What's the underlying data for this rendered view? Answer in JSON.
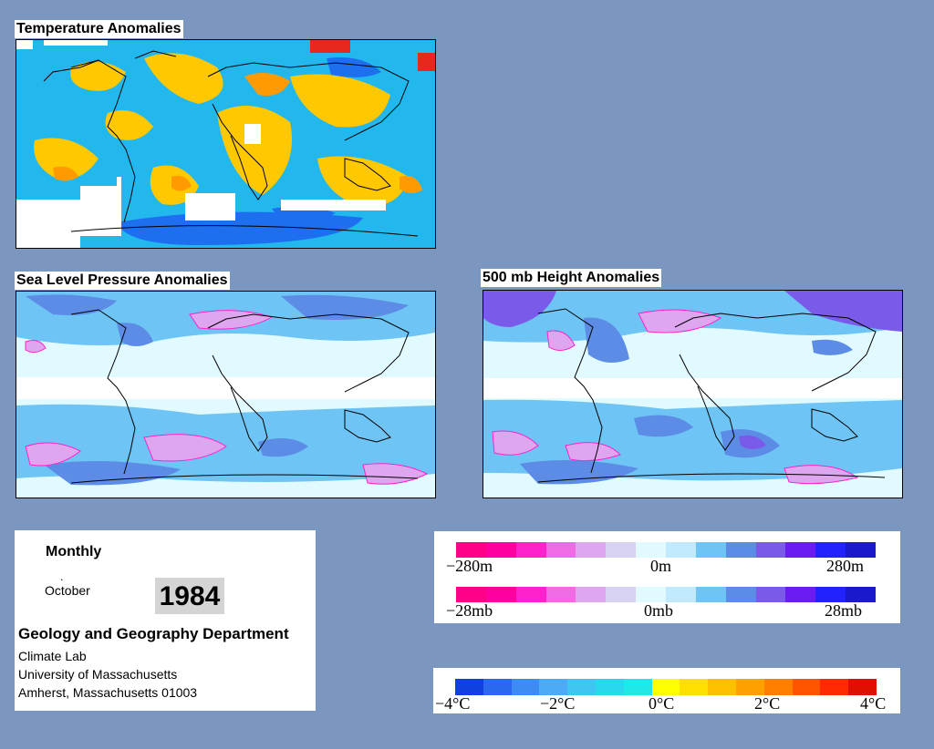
{
  "panels": {
    "temperature": {
      "title": "Temperature Anomalies"
    },
    "slp": {
      "title": "Sea Level Pressure Anomalies"
    },
    "height500": {
      "title": "500 mb Height Anomalies"
    }
  },
  "info": {
    "period": "Monthly",
    "dot": ".",
    "month": "October",
    "year": "1984",
    "department": "Geology and Geography Department",
    "lines": [
      "Climate Lab",
      "University of Massachusetts",
      "Amherst, Massachusetts 01003"
    ]
  },
  "height_legend": {
    "labels": [
      "−280m",
      "0m",
      "280m"
    ],
    "colors": [
      "#ff0088",
      "#ff00a0",
      "#ff22cc",
      "#f06ae6",
      "#dda6ee",
      "#d8d2f2",
      "#e0faff",
      "#c2eaff",
      "#6ec4f4",
      "#5c8ce6",
      "#7a5ae8",
      "#6b1cf0",
      "#2222ff",
      "#1a1acc"
    ]
  },
  "pressure_legend": {
    "labels": [
      "−28mb",
      "0mb",
      "28mb"
    ],
    "colors": [
      "#ff0088",
      "#ff00a0",
      "#ff22cc",
      "#f06ae6",
      "#dda6ee",
      "#d8d2f2",
      "#e0faff",
      "#c2eaff",
      "#6ec4f4",
      "#5c8ce6",
      "#7a5ae8",
      "#6b1cf0",
      "#2222ff",
      "#1a1acc"
    ]
  },
  "temperature_legend": {
    "labels": [
      "−4°C",
      "−2°C",
      "0°C",
      "2°C",
      "4°C"
    ],
    "colors": [
      "#1040e0",
      "#2a68f0",
      "#3c8cf4",
      "#4caaf6",
      "#3fc4f4",
      "#2ad8ee",
      "#1fe8e8",
      "#ffff00",
      "#ffe000",
      "#ffc000",
      "#ffa200",
      "#ff8000",
      "#ff5500",
      "#ff2a00",
      "#e01000"
    ]
  }
}
